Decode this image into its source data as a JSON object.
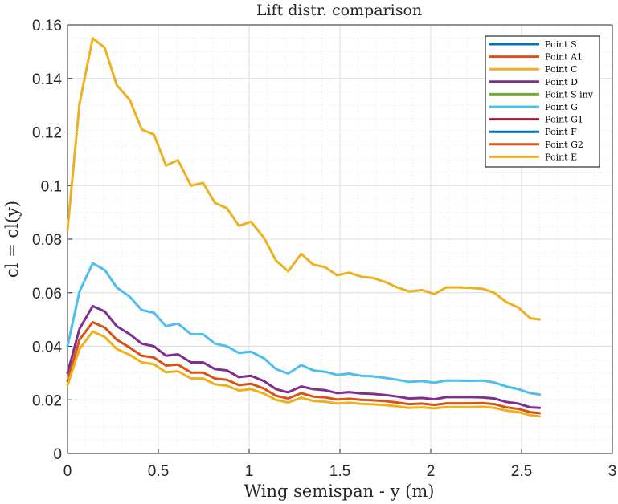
{
  "chart_data": {
    "type": "line",
    "title": "Lift distr. comparison",
    "xlabel": "Wing semispan - y (m)",
    "ylabel": "cl = cl(y)",
    "xlim": [
      0,
      3
    ],
    "ylim": [
      0,
      0.16
    ],
    "x_ticks": [
      "0",
      "0.5",
      "1",
      "1.5",
      "2",
      "2.5",
      "3"
    ],
    "y_ticks": [
      "0",
      "0.02",
      "0.04",
      "0.06",
      "0.08",
      "0.1",
      "0.12",
      "0.14",
      "0.16"
    ],
    "x_tick_values": [
      0,
      0.5,
      1,
      1.5,
      2,
      2.5,
      3
    ],
    "y_tick_values": [
      0,
      0.02,
      0.04,
      0.06,
      0.08,
      0.1,
      0.12,
      0.14,
      0.16
    ],
    "grid": true,
    "minor_grid": true,
    "legend_position": "top-right",
    "x": [
      0.0,
      0.066,
      0.139,
      0.205,
      0.271,
      0.343,
      0.409,
      0.476,
      0.542,
      0.608,
      0.68,
      0.746,
      0.812,
      0.878,
      0.944,
      1.01,
      1.082,
      1.148,
      1.215,
      1.287,
      1.353,
      1.419,
      1.485,
      1.551,
      1.617,
      1.683,
      1.749,
      1.815,
      1.881,
      1.953,
      2.02,
      2.086,
      2.152,
      2.218,
      2.284,
      2.35,
      2.416,
      2.482,
      2.548,
      2.6
    ],
    "series": [
      {
        "name": "Point S",
        "color": "#0072BD",
        "values": null
      },
      {
        "name": "Point A1",
        "color": "#D95319",
        "values": null
      },
      {
        "name": "Point C",
        "color": "#EDB120",
        "values": [
          0.0835,
          0.1305,
          0.155,
          0.1515,
          0.1375,
          0.132,
          0.121,
          0.119,
          0.1075,
          0.1095,
          0.1,
          0.101,
          0.0935,
          0.0915,
          0.085,
          0.0865,
          0.0805,
          0.072,
          0.068,
          0.0745,
          0.0705,
          0.0695,
          0.0665,
          0.0675,
          0.066,
          0.0655,
          0.064,
          0.062,
          0.0605,
          0.061,
          0.0595,
          0.062,
          0.062,
          0.0618,
          0.0615,
          0.06,
          0.0565,
          0.0545,
          0.0505,
          0.05
        ]
      },
      {
        "name": "Point D",
        "color": "#7E2F8E",
        "values": [
          0.03,
          0.0465,
          0.055,
          0.053,
          0.0475,
          0.0445,
          0.041,
          0.04,
          0.0365,
          0.037,
          0.034,
          0.034,
          0.0315,
          0.031,
          0.0285,
          0.029,
          0.027,
          0.024,
          0.0228,
          0.025,
          0.024,
          0.0236,
          0.0225,
          0.0229,
          0.0224,
          0.0222,
          0.0218,
          0.0212,
          0.0205,
          0.0207,
          0.0202,
          0.021,
          0.021,
          0.021,
          0.0209,
          0.0205,
          0.0192,
          0.0186,
          0.0172,
          0.017
        ]
      },
      {
        "name": "Point S inv",
        "color": "#77AC30",
        "values": null
      },
      {
        "name": "Point G",
        "color": "#4DBEEE",
        "values": [
          0.04,
          0.0605,
          0.071,
          0.0685,
          0.062,
          0.0585,
          0.0535,
          0.0525,
          0.0475,
          0.0485,
          0.0445,
          0.0445,
          0.041,
          0.04,
          0.0375,
          0.038,
          0.0355,
          0.0315,
          0.0298,
          0.033,
          0.031,
          0.0305,
          0.0293,
          0.0298,
          0.029,
          0.0288,
          0.0282,
          0.0275,
          0.0267,
          0.027,
          0.0264,
          0.0272,
          0.0272,
          0.0271,
          0.0272,
          0.0265,
          0.025,
          0.024,
          0.0225,
          0.022
        ]
      },
      {
        "name": "Point G1",
        "color": "#A2142F",
        "values": null
      },
      {
        "name": "Point F",
        "color": "#0072BD",
        "values": null
      },
      {
        "name": "Point G2",
        "color": "#D95319",
        "values": [
          0.027,
          0.0425,
          0.049,
          0.047,
          0.0425,
          0.0395,
          0.0365,
          0.0358,
          0.0328,
          0.0332,
          0.0302,
          0.0302,
          0.028,
          0.0275,
          0.0255,
          0.026,
          0.0242,
          0.0215,
          0.0205,
          0.0225,
          0.0212,
          0.0209,
          0.0201,
          0.0204,
          0.02,
          0.0198,
          0.0195,
          0.019,
          0.0184,
          0.0186,
          0.0181,
          0.0187,
          0.0187,
          0.0187,
          0.0188,
          0.0184,
          0.0172,
          0.0166,
          0.0154,
          0.015
        ]
      },
      {
        "name": "Point E",
        "color": "#EDB120",
        "values": [
          0.0255,
          0.039,
          0.0455,
          0.0435,
          0.039,
          0.0368,
          0.034,
          0.0333,
          0.0303,
          0.0307,
          0.028,
          0.028,
          0.0258,
          0.0253,
          0.0235,
          0.024,
          0.0223,
          0.02,
          0.019,
          0.0208,
          0.0196,
          0.0193,
          0.0186,
          0.0189,
          0.0185,
          0.0183,
          0.018,
          0.0176,
          0.017,
          0.0172,
          0.0168,
          0.0173,
          0.0173,
          0.0173,
          0.0174,
          0.017,
          0.016,
          0.0154,
          0.0143,
          0.0138
        ]
      }
    ]
  }
}
